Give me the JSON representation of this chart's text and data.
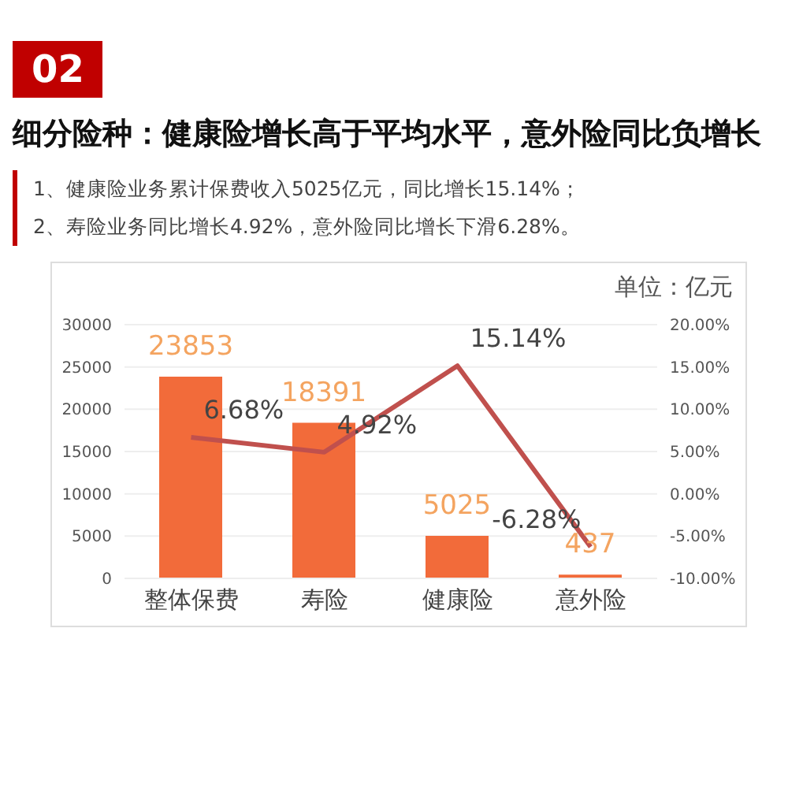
{
  "chart_data": {
    "type": "bar",
    "title": "细分险种：健康险增长高于平均水平，意外险同比负增长",
    "annotations": [
      "02",
      "1、健康险业务累计保费收入5025亿元，同比增长15.14%；",
      "2、寿险业务同比增长4.92%，意外险同比增长下滑6.28%。",
      "单位：亿元"
    ],
    "categories": [
      "整体保费",
      "寿险",
      "健康险",
      "意外险"
    ],
    "series": [
      {
        "color": "#f26b3a",
        "values": [
          23853,
          18391,
          5025,
          437
        ],
        "value_labels": [
          "23853",
          "18391",
          "5025",
          "437"
        ]
      },
      {
        "type": "line",
        "axis": "y2",
        "color": "#c0504d",
        "values": [
          6.68,
          4.92,
          15.14,
          -6.28
        ],
        "value_labels": [
          "6.68%",
          "4.92%",
          "15.14%",
          "-6.28%"
        ]
      }
    ],
    "ylim": [
      0,
      30000
    ],
    "yticks": [
      0,
      5000,
      10000,
      15000,
      20000,
      25000,
      30000
    ],
    "y2lim": [
      -10,
      20
    ],
    "y2ticks": [
      {
        "value": -10,
        "label": "-10.00%"
      },
      {
        "value": -5,
        "label": "-5.00%"
      },
      {
        "value": 0,
        "label": "0.00%"
      },
      {
        "value": 5,
        "label": "5.00%"
      },
      {
        "value": 10,
        "label": "10.00%"
      },
      {
        "value": 15,
        "label": "15.00%"
      },
      {
        "value": 20,
        "label": "20.00%"
      }
    ],
    "grid": "y",
    "marker": "none",
    "line_style": "solid",
    "legend": false
  }
}
